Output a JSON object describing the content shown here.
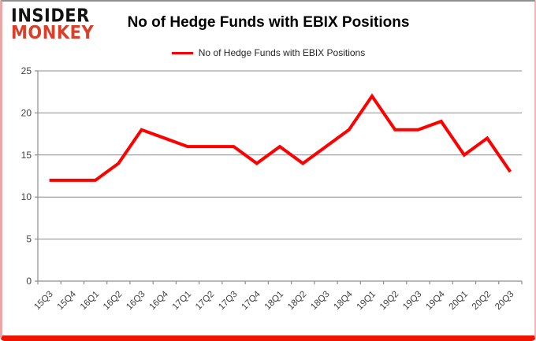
{
  "logo": {
    "line1": "INSIDER",
    "line2": "MONKEY"
  },
  "header": {
    "title": "No of Hedge Funds with EBIX Positions"
  },
  "legend": {
    "label": "No of Hedge Funds with EBIX Positions",
    "line_color": "#ff0000"
  },
  "chart_data": {
    "type": "line",
    "title": "No of Hedge Funds with EBIX Positions",
    "xlabel": "",
    "ylabel": "",
    "categories": [
      "15Q3",
      "15Q4",
      "16Q1",
      "16Q2",
      "16Q3",
      "16Q4",
      "17Q1",
      "17Q2",
      "17Q3",
      "17Q4",
      "18Q1",
      "18Q2",
      "18Q3",
      "18Q4",
      "19Q1",
      "19Q2",
      "19Q3",
      "19Q4",
      "20Q1",
      "20Q2",
      "20Q3"
    ],
    "series": [
      {
        "name": "No of Hedge Funds with EBIX Positions",
        "color": "#ff0000",
        "values": [
          12,
          12,
          12,
          14,
          18,
          17,
          16,
          16,
          16,
          14,
          16,
          14,
          16,
          18,
          22,
          18,
          18,
          19,
          15,
          17,
          13
        ]
      }
    ],
    "ylim": [
      0,
      25
    ],
    "yticks": [
      0,
      5,
      10,
      15,
      20,
      25
    ],
    "grid": true,
    "legend_position": "top",
    "gridline_color": "#8c8c8c",
    "axis_color": "#8c8c8c",
    "tick_label_color": "#3f3f3f"
  }
}
